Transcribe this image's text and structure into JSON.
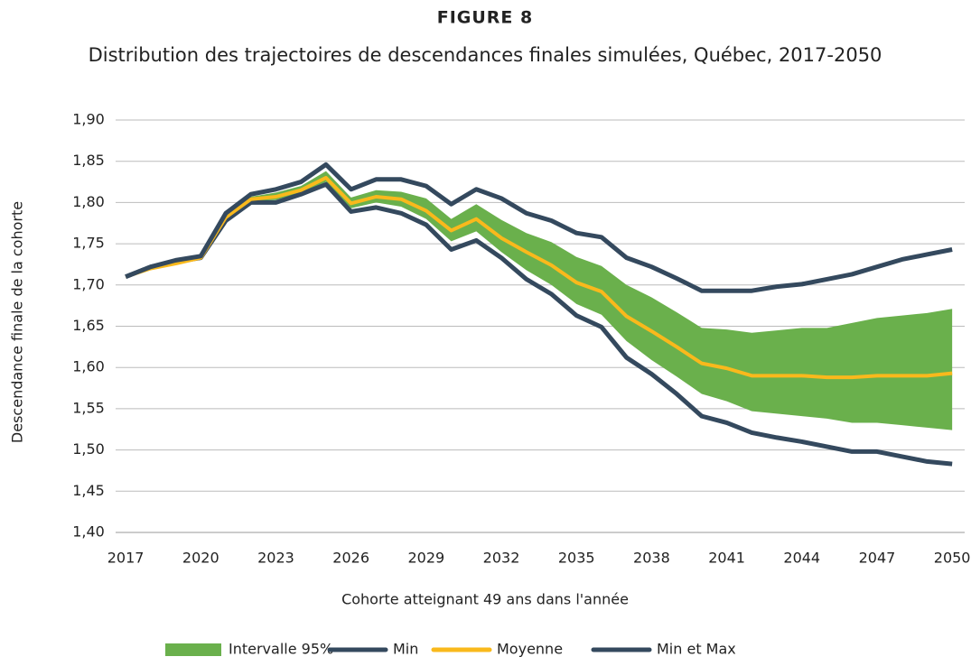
{
  "chart_data": {
    "type": "line",
    "title": "FIGURE 8",
    "subtitle": "Distribution des trajectoires de descendances finales simulées, Québec, 2017-2050",
    "xlabel": "Cohorte atteignant 49 ans dans l'année",
    "ylabel": "Descendance finale de la cohorte",
    "x": [
      2017,
      2018,
      2019,
      2020,
      2021,
      2022,
      2023,
      2024,
      2025,
      2026,
      2027,
      2028,
      2029,
      2030,
      2031,
      2032,
      2033,
      2034,
      2035,
      2036,
      2037,
      2038,
      2039,
      2040,
      2041,
      2042,
      2043,
      2044,
      2045,
      2046,
      2047,
      2048,
      2049,
      2050
    ],
    "xlim": [
      2016.6,
      2050.5
    ],
    "xticks": [
      2017,
      2020,
      2023,
      2026,
      2029,
      2032,
      2035,
      2038,
      2041,
      2044,
      2047,
      2050
    ],
    "ylim": [
      1.4,
      1.9
    ],
    "yticks": [
      {
        "value": 1.4,
        "label": "1,40"
      },
      {
        "value": 1.45,
        "label": "1,45"
      },
      {
        "value": 1.5,
        "label": "1,50"
      },
      {
        "value": 1.55,
        "label": "1,55"
      },
      {
        "value": 1.6,
        "label": "1,60"
      },
      {
        "value": 1.65,
        "label": "1,65"
      },
      {
        "value": 1.7,
        "label": "1,70"
      },
      {
        "value": 1.75,
        "label": "1,75"
      },
      {
        "value": 1.8,
        "label": "1,80"
      },
      {
        "value": 1.85,
        "label": "1,85"
      },
      {
        "value": 1.9,
        "label": "1,90"
      }
    ],
    "grid": true,
    "legend": "bottom",
    "series": [
      {
        "name": "Intervalle 95%",
        "color": "#6ab04c",
        "kind": "band",
        "values": [
          1.71,
          1.722,
          1.729,
          1.735,
          1.785,
          1.807,
          1.812,
          1.82,
          1.838,
          1.806,
          1.815,
          1.813,
          1.805,
          1.78,
          1.798,
          1.779,
          1.763,
          1.752,
          1.734,
          1.723,
          1.7,
          1.685,
          1.667,
          1.648,
          1.646,
          1.642,
          1.645,
          1.648,
          1.648,
          1.654,
          1.66,
          1.663,
          1.666,
          1.671
        ],
        "lower": [
          1.71,
          1.72,
          1.726,
          1.733,
          1.779,
          1.802,
          1.803,
          1.812,
          1.825,
          1.793,
          1.8,
          1.795,
          1.78,
          1.753,
          1.765,
          1.74,
          1.718,
          1.7,
          1.677,
          1.664,
          1.632,
          1.609,
          1.589,
          1.568,
          1.559,
          1.547,
          1.544,
          1.541,
          1.538,
          1.533,
          1.533,
          1.53,
          1.527,
          1.524
        ]
      },
      {
        "name": "Min",
        "color": "#34495e",
        "values": [
          1.71,
          1.722,
          1.728,
          1.733,
          1.778,
          1.8,
          1.8,
          1.81,
          1.822,
          1.789,
          1.794,
          1.787,
          1.773,
          1.743,
          1.754,
          1.733,
          1.707,
          1.689,
          1.663,
          1.649,
          1.612,
          1.592,
          1.568,
          1.541,
          1.533,
          1.521,
          1.515,
          1.51,
          1.504,
          1.498,
          1.498,
          1.492,
          1.486,
          1.483
        ]
      },
      {
        "name": "Moyenne",
        "color": "#f9b91c",
        "values": [
          1.71,
          1.72,
          1.726,
          1.733,
          1.782,
          1.804,
          1.807,
          1.815,
          1.83,
          1.799,
          1.807,
          1.804,
          1.79,
          1.766,
          1.78,
          1.757,
          1.74,
          1.724,
          1.703,
          1.692,
          1.662,
          1.644,
          1.625,
          1.605,
          1.599,
          1.59,
          1.59,
          1.59,
          1.588,
          1.588,
          1.59,
          1.59,
          1.59,
          1.593
        ]
      },
      {
        "name": "Min et Max",
        "color": "#34495e",
        "values": [
          1.71,
          1.722,
          1.73,
          1.735,
          1.787,
          1.81,
          1.816,
          1.825,
          1.846,
          1.816,
          1.828,
          1.828,
          1.82,
          1.798,
          1.816,
          1.805,
          1.787,
          1.778,
          1.763,
          1.758,
          1.733,
          1.722,
          1.708,
          1.693,
          1.693,
          1.693,
          1.698,
          1.701,
          1.707,
          1.713,
          1.722,
          1.731,
          1.737,
          1.743
        ]
      }
    ]
  }
}
